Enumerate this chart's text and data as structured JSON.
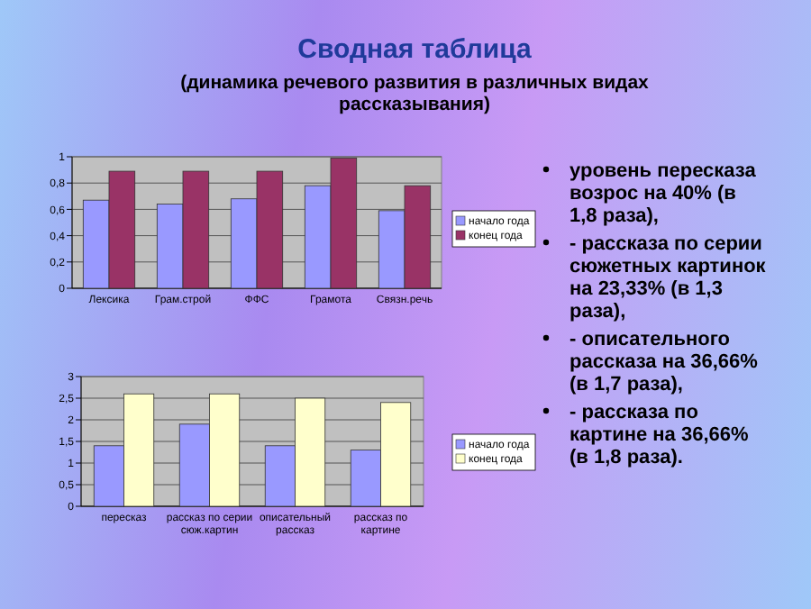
{
  "chart_data": [
    {
      "type": "bar",
      "title": "Сводная таблица",
      "subtitle": "(динамика речевого развития в различных видах рассказывания)",
      "categories": [
        "Лексика",
        "Грам.строй",
        "ФФС",
        "Грамота",
        "Связн.речь"
      ],
      "series": [
        {
          "name": "начало года",
          "color": "#9999ff",
          "values": [
            0.67,
            0.64,
            0.68,
            0.78,
            0.59
          ]
        },
        {
          "name": "конец года",
          "color": "#993366",
          "values": [
            0.89,
            0.89,
            0.89,
            0.99,
            0.78
          ]
        }
      ],
      "ylim": [
        0,
        1
      ],
      "yticks": [
        0,
        {
          "value": 0.2,
          "label": "0,2"
        },
        {
          "value": 0.4,
          "label": "0,4"
        },
        {
          "value": 0.6,
          "label": "0,6"
        },
        {
          "value": 0.8,
          "label": "0,8"
        },
        1
      ],
      "grid": "y",
      "legend": "right"
    },
    {
      "type": "bar",
      "categories": [
        "пересказ",
        "рассказ по серии сюж.картин",
        "описательный рассказ",
        "рассказ по картине"
      ],
      "series": [
        {
          "name": "начало года",
          "color": "#9999ff",
          "values": [
            1.4,
            1.9,
            1.4,
            1.3
          ]
        },
        {
          "name": "конец года",
          "color": "#ffffcc",
          "values": [
            2.6,
            2.6,
            2.5,
            2.4
          ]
        }
      ],
      "ylim": [
        0,
        3
      ],
      "yticks": [
        0,
        {
          "value": 0.5,
          "label": "0,5"
        },
        1,
        {
          "value": 1.5,
          "label": "1,5"
        },
        2,
        {
          "value": 2.5,
          "label": "2,5"
        },
        3
      ],
      "grid": "y",
      "legend": "right"
    },
    {
      "type": "other",
      "annotations": [
        "уровень пересказа возрос на 40% (в 1,8 раза),",
        "- рассказа по серии сюжетных картинок на 23,33% (в 1,3 раза),",
        "- описательного рассказа на 36,66% (в 1,7 раза),",
        "- рассказа по картине на 36,66% (в 1,8 раза)."
      ]
    }
  ]
}
